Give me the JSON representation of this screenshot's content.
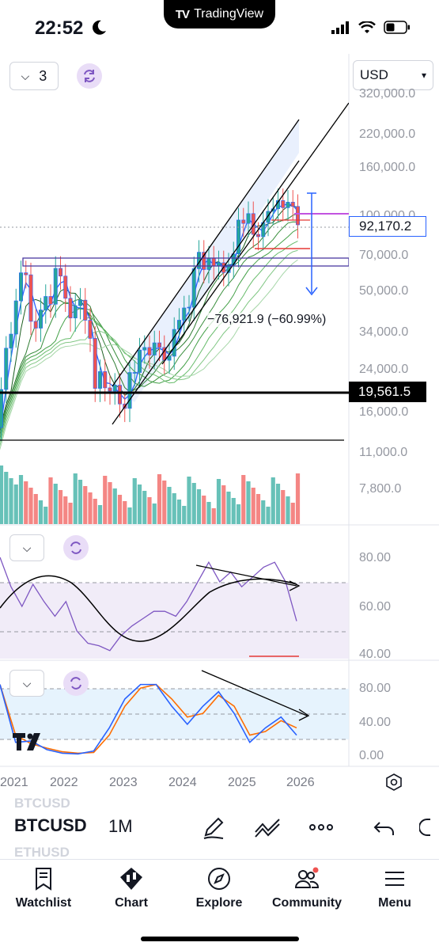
{
  "status": {
    "time": "22:52",
    "badge": "TradingView"
  },
  "header": {
    "layout_count": "3",
    "currency": "USD"
  },
  "price_axis": [
    "320,000.0",
    "220,000.0",
    "160,000.0",
    "100,000.0",
    "70,000.0",
    "50,000.0",
    "34,000.0",
    "24,000.0",
    "16,000.0",
    "11,000.0",
    "7,800.0"
  ],
  "price_tags": {
    "last": "92,170.2",
    "level": "19,561.5"
  },
  "measure_label": "−76,921.9 (−60.99%)",
  "rsi_axis": [
    "80.00",
    "60.00",
    "40.00"
  ],
  "stoch_axis": [
    "80.00",
    "40.00",
    "0.00"
  ],
  "years": [
    "2021",
    "2022",
    "2023",
    "2024",
    "2025",
    "2026"
  ],
  "toolbar": {
    "symbol": "BTCUSD",
    "interval": "1M",
    "ghost_symbols": [
      "BTCUSD",
      "ETHUSD"
    ],
    "icons": [
      "drawing-pen-icon",
      "indicators-icon",
      "more-icon",
      "undo-icon"
    ]
  },
  "nav": [
    {
      "label": "Watchlist",
      "icon": "watchlist-icon"
    },
    {
      "label": "Chart",
      "icon": "chart-icon"
    },
    {
      "label": "Explore",
      "icon": "compass-icon"
    },
    {
      "label": "Community",
      "icon": "community-icon"
    },
    {
      "label": "Menu",
      "icon": "menu-icon"
    }
  ],
  "colors": {
    "up": "#26a69a",
    "down": "#ef5350",
    "accent": "#2962ff",
    "rsi": "#7e57c2",
    "stoch_k": "#2962ff",
    "stoch_d": "#ff6d00"
  },
  "chart_data": [
    {
      "type": "candlestick",
      "symbol": "BTCUSD",
      "interval": "1M",
      "scale": "log",
      "y_ticks": [
        7800,
        11000,
        16000,
        24000,
        34000,
        50000,
        70000,
        100000,
        160000,
        220000,
        320000
      ],
      "x_ticks": [
        "2021",
        "2022",
        "2023",
        "2024",
        "2025",
        "2026"
      ],
      "close_approx": [
        {
          "date": "2020-09",
          "close": 10800
        },
        {
          "date": "2020-10",
          "close": 13800
        },
        {
          "date": "2020-11",
          "close": 19700
        },
        {
          "date": "2020-12",
          "close": 29000
        },
        {
          "date": "2021-01",
          "close": 33100
        },
        {
          "date": "2021-02",
          "close": 45200
        },
        {
          "date": "2021-03",
          "close": 58800
        },
        {
          "date": "2021-04",
          "close": 57700
        },
        {
          "date": "2021-05",
          "close": 37300
        },
        {
          "date": "2021-06",
          "close": 35000
        },
        {
          "date": "2021-07",
          "close": 41500
        },
        {
          "date": "2021-08",
          "close": 47100
        },
        {
          "date": "2021-09",
          "close": 43800
        },
        {
          "date": "2021-10",
          "close": 61300
        },
        {
          "date": "2021-11",
          "close": 57000
        },
        {
          "date": "2021-12",
          "close": 46300
        },
        {
          "date": "2022-01",
          "close": 38500
        },
        {
          "date": "2022-02",
          "close": 43200
        },
        {
          "date": "2022-03",
          "close": 45500
        },
        {
          "date": "2022-04",
          "close": 37700
        },
        {
          "date": "2022-05",
          "close": 31800
        },
        {
          "date": "2022-06",
          "close": 19900
        },
        {
          "date": "2022-07",
          "close": 23300
        },
        {
          "date": "2022-08",
          "close": 20000
        },
        {
          "date": "2022-09",
          "close": 19400
        },
        {
          "date": "2022-10",
          "close": 20500
        },
        {
          "date": "2022-11",
          "close": 17200
        },
        {
          "date": "2022-12",
          "close": 16500
        },
        {
          "date": "2023-01",
          "close": 23100
        },
        {
          "date": "2023-02",
          "close": 23100
        },
        {
          "date": "2023-03",
          "close": 28500
        },
        {
          "date": "2023-04",
          "close": 29200
        },
        {
          "date": "2023-05",
          "close": 27200
        },
        {
          "date": "2023-06",
          "close": 30500
        },
        {
          "date": "2023-07",
          "close": 29200
        },
        {
          "date": "2023-08",
          "close": 25900
        },
        {
          "date": "2023-09",
          "close": 26900
        },
        {
          "date": "2023-10",
          "close": 34600
        },
        {
          "date": "2023-11",
          "close": 37700
        },
        {
          "date": "2023-12",
          "close": 42300
        },
        {
          "date": "2024-01",
          "close": 42600
        },
        {
          "date": "2024-02",
          "close": 61100
        },
        {
          "date": "2024-03",
          "close": 71300
        },
        {
          "date": "2024-04",
          "close": 60600
        },
        {
          "date": "2024-05",
          "close": 67500
        },
        {
          "date": "2024-06",
          "close": 62700
        },
        {
          "date": "2024-07",
          "close": 64600
        },
        {
          "date": "2024-08",
          "close": 58900
        },
        {
          "date": "2024-09",
          "close": 63300
        },
        {
          "date": "2024-10",
          "close": 70200
        },
        {
          "date": "2024-11",
          "close": 96400
        },
        {
          "date": "2024-12",
          "close": 93400
        },
        {
          "date": "2025-01",
          "close": 102400
        },
        {
          "date": "2025-02",
          "close": 84300
        },
        {
          "date": "2025-03",
          "close": 82500
        },
        {
          "date": "2025-04",
          "close": 94200
        },
        {
          "date": "2025-05",
          "close": 104600
        },
        {
          "date": "2025-06",
          "close": 107100
        },
        {
          "date": "2025-07",
          "close": 115700
        },
        {
          "date": "2025-08",
          "close": 108200
        },
        {
          "date": "2025-09",
          "close": 114000
        },
        {
          "date": "2025-10",
          "close": 109500
        },
        {
          "date": "2025-11",
          "close": 92170
        }
      ],
      "last_price": 92170.2,
      "horizontal_levels": [
        19561.5
      ],
      "measure": {
        "change": -76921.9,
        "percent": -60.99
      }
    },
    {
      "type": "line",
      "name": "RSI",
      "ylim": [
        40,
        85
      ],
      "bands": [
        70,
        50
      ],
      "values_approx": [
        80,
        68,
        60,
        69,
        62,
        56,
        62,
        50,
        45,
        44,
        42,
        48,
        52,
        55,
        58,
        58,
        56,
        62,
        70,
        78,
        70,
        74,
        68,
        72,
        76,
        78,
        70,
        54
      ]
    },
    {
      "type": "line",
      "name": "Stochastic RSI",
      "ylim": [
        0,
        100
      ],
      "bands": [
        80,
        50,
        20
      ],
      "series": [
        {
          "name": "K",
          "values_approx": [
            100,
            20,
            22,
            10,
            5,
            4,
            8,
            40,
            80,
            100,
            100,
            70,
            45,
            70,
            90,
            60,
            20,
            40,
            55,
            30
          ]
        },
        {
          "name": "D",
          "values_approx": [
            100,
            30,
            18,
            12,
            7,
            5,
            6,
            30,
            70,
            95,
            100,
            80,
            55,
            60,
            85,
            70,
            30,
            35,
            50,
            40
          ]
        }
      ]
    }
  ]
}
